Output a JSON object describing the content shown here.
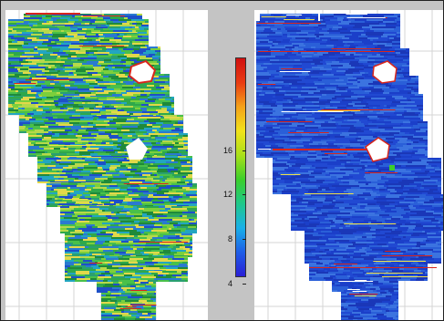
{
  "figure": {
    "colorbar": {
      "min": 0,
      "max": 20,
      "ticks": [
        "4",
        "8",
        "12",
        "16"
      ],
      "colors": [
        "#2a1fd6",
        "#1e5ee8",
        "#18b0e8",
        "#1fc88a",
        "#3ccf2a",
        "#a9e01a",
        "#f2e21a",
        "#f4a21a",
        "#ea3b12",
        "#d01010"
      ]
    },
    "left_panel": {
      "palette": [
        "#1f8a3a",
        "#2fa84a",
        "#49c04a",
        "#7ccf3c",
        "#b6d94a",
        "#e2d84a",
        "#2a7ad0",
        "#1e50c8",
        "#22a6c0",
        "#2aa070"
      ]
    },
    "right_panel": {
      "palette": [
        "#1b3fc9",
        "#2149d2",
        "#1a37b8",
        "#2a5fd8",
        "#3b73e0"
      ],
      "accent_colors": [
        "#d8261c",
        "#f0e24a",
        "#ffffff"
      ]
    }
  }
}
